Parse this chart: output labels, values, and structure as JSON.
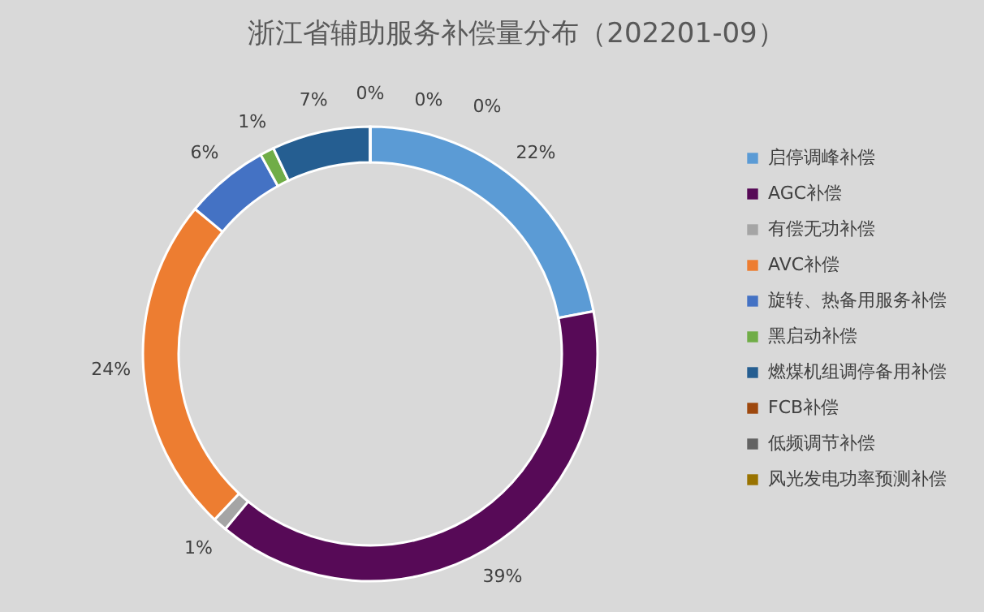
{
  "chart_data": {
    "type": "donut",
    "title": "浙江省辅助服务补偿量分布（202201-09）",
    "categories": [
      "启停调峰补偿",
      "AGC补偿",
      "有偿无功补偿",
      "AVC补偿",
      "旋转、热备用服务补偿",
      "黑启动补偿",
      "燃煤机组调停备用补偿",
      "FCB补偿",
      "低频调节补偿",
      "风光发电功率预测补偿"
    ],
    "values": [
      22,
      39,
      1,
      24,
      6,
      1,
      7,
      0,
      0,
      0
    ],
    "value_labels": [
      "22%",
      "39%",
      "1%",
      "24%",
      "6%",
      "1%",
      "7%",
      "0%",
      "0%",
      "0%"
    ],
    "colors": [
      "#5b9bd5",
      "#570a57",
      "#a5a5a5",
      "#ed7d31",
      "#4472c4",
      "#70ad47",
      "#255e91",
      "#9e480e",
      "#636363",
      "#997300"
    ],
    "legend": "right"
  }
}
